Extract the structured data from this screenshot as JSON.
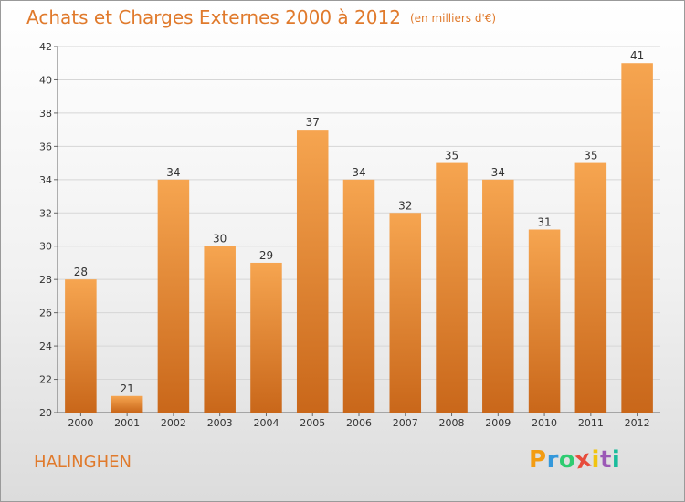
{
  "title": "Achats et Charges Externes 2000 à 2012",
  "subtitle": "(en milliers d'€)",
  "commune": "HALINGHEN",
  "brand": {
    "letters": [
      "P",
      "r",
      "o",
      "x",
      "i",
      "t",
      "i"
    ],
    "colors": [
      "#f39c12",
      "#3498db",
      "#2ecc71",
      "#e74c3c",
      "#f1c40f",
      "#9b59b6",
      "#1abc9c"
    ]
  },
  "colors": {
    "accent": "#e07a2c",
    "bar_top": "#f6a550",
    "bar_bottom": "#c9671a",
    "grid": "#d6d6d6",
    "axis_text": "#333333"
  },
  "chart_data": {
    "type": "bar",
    "categories": [
      "2000",
      "2001",
      "2002",
      "2003",
      "2004",
      "2005",
      "2006",
      "2007",
      "2008",
      "2009",
      "2010",
      "2011",
      "2012"
    ],
    "values": [
      28,
      21,
      34,
      30,
      29,
      37,
      34,
      32,
      35,
      34,
      31,
      35,
      41
    ],
    "ylim": [
      20,
      42
    ],
    "yticks": [
      20,
      22,
      24,
      26,
      28,
      30,
      32,
      34,
      36,
      38,
      40,
      42
    ],
    "grid": "horizontal",
    "data_labels": true
  }
}
